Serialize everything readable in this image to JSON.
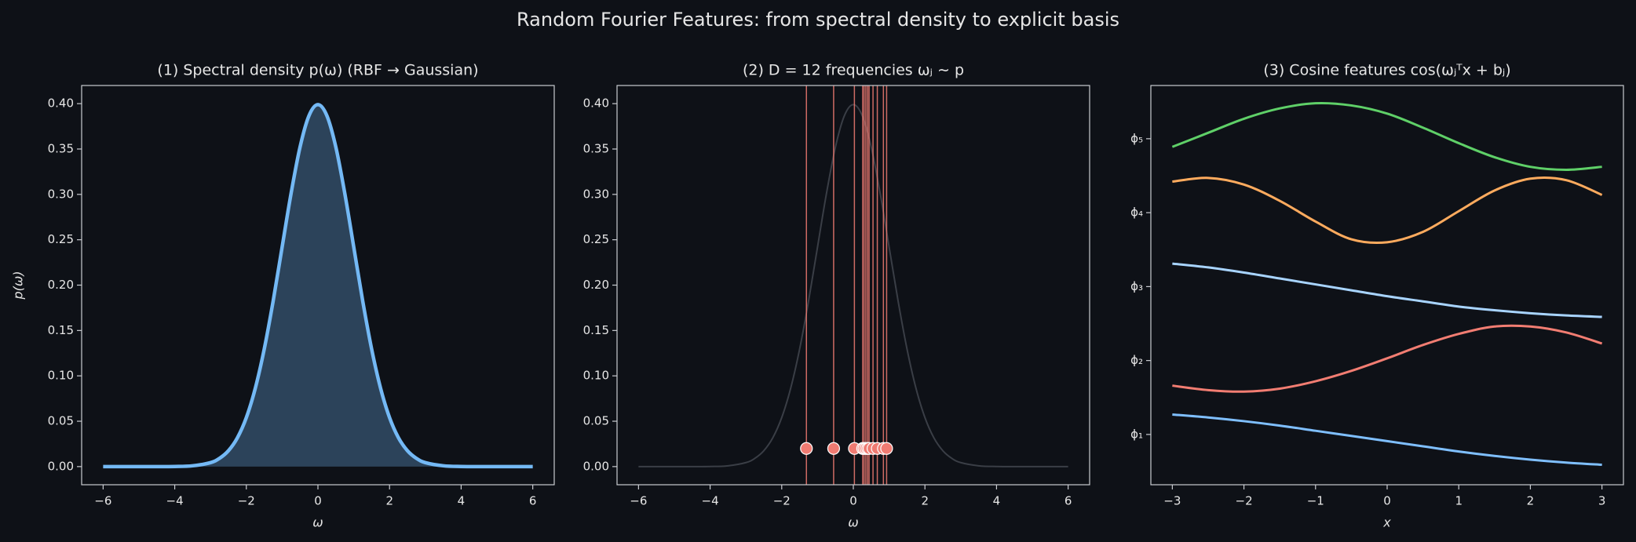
{
  "title": "Random Fourier Features: from spectral density to explicit basis",
  "chart_data": [
    {
      "type": "area",
      "title": "(1) Spectral density p(ω) (RBF → Gaussian)",
      "xlabel": "ω",
      "ylabel": "p(ω)",
      "x": [
        -6,
        -5,
        -4,
        -3.5,
        -3,
        -2.75,
        -2.5,
        -2.25,
        -2,
        -1.75,
        -1.5,
        -1.25,
        -1,
        -0.75,
        -0.5,
        -0.25,
        0,
        0.25,
        0.5,
        0.75,
        1,
        1.25,
        1.5,
        1.75,
        2,
        2.25,
        2.5,
        2.75,
        3,
        3.5,
        4,
        5,
        6
      ],
      "series": [
        {
          "color": "#74b9f5",
          "values": [
            0,
            0,
            0.0001,
            0.0009,
            0.0044,
            0.0091,
            0.0175,
            0.0317,
            0.054,
            0.0863,
            0.1295,
            0.1826,
            0.242,
            0.3011,
            0.3521,
            0.3867,
            0.3989,
            0.3867,
            0.3521,
            0.3011,
            0.242,
            0.1826,
            0.1295,
            0.0863,
            0.054,
            0.0317,
            0.0175,
            0.0091,
            0.0044,
            0.0009,
            0.0001,
            0,
            0
          ]
        }
      ],
      "xlim": [
        -6.6,
        6.6
      ],
      "ylim": [
        -0.02,
        0.42
      ],
      "xticks": [
        {
          "value": -6,
          "label": "−6"
        },
        {
          "value": -4,
          "label": "−4"
        },
        {
          "value": -2,
          "label": "−2"
        },
        0,
        2,
        4,
        6
      ],
      "yticks": [
        {
          "value": 0,
          "label": "0.00"
        },
        {
          "value": 0.05,
          "label": "0.05"
        },
        {
          "value": 0.1,
          "label": "0.10"
        },
        {
          "value": 0.15,
          "label": "0.15"
        },
        {
          "value": 0.2,
          "label": "0.20"
        },
        {
          "value": 0.25,
          "label": "0.25"
        },
        {
          "value": 0.3,
          "label": "0.30"
        },
        {
          "value": 0.35,
          "label": "0.35"
        },
        {
          "value": 0.4,
          "label": "0.40"
        }
      ]
    },
    {
      "type": "rug",
      "title": "(2) D = 12 frequencies ωⱼ ∼ p",
      "xlabel": "ω",
      "x": [
        -6,
        -5,
        -4,
        -3.5,
        -3,
        -2.75,
        -2.5,
        -2.25,
        -2,
        -1.75,
        -1.5,
        -1.25,
        -1,
        -0.75,
        -0.5,
        -0.25,
        0,
        0.25,
        0.5,
        0.75,
        1,
        1.25,
        1.5,
        1.75,
        2,
        2.25,
        2.5,
        2.75,
        3,
        3.5,
        4,
        5,
        6
      ],
      "series": [
        {
          "color": "#3a3e46",
          "values": [
            0,
            0,
            0.0001,
            0.0009,
            0.0044,
            0.0091,
            0.0175,
            0.0317,
            0.054,
            0.0863,
            0.1295,
            0.1826,
            0.242,
            0.3011,
            0.3521,
            0.3867,
            0.3989,
            0.3867,
            0.3521,
            0.3011,
            0.242,
            0.1826,
            0.1295,
            0.0863,
            0.054,
            0.0317,
            0.0175,
            0.0091,
            0.0044,
            0.0009,
            0.0001,
            0,
            0
          ]
        }
      ],
      "samples": {
        "color": "#f07b72",
        "x": [
          -1.31,
          -0.55,
          0.03,
          0.26,
          0.3,
          0.35,
          0.4,
          0.44,
          0.55,
          0.67,
          0.84,
          0.93
        ],
        "values": [
          0.02,
          0.02,
          0.02,
          0.02,
          0.02,
          0.02,
          0.02,
          0.02,
          0.02,
          0.02,
          0.02,
          0.02
        ]
      },
      "xlim": [
        -6.6,
        6.6
      ],
      "ylim": [
        -0.02,
        0.42
      ],
      "xticks": [
        {
          "value": -6,
          "label": "−6"
        },
        {
          "value": -4,
          "label": "−4"
        },
        {
          "value": -2,
          "label": "−2"
        },
        0,
        2,
        4,
        6
      ],
      "yticks": [
        {
          "value": 0,
          "label": "0.00"
        },
        {
          "value": 0.05,
          "label": "0.05"
        },
        {
          "value": 0.1,
          "label": "0.10"
        },
        {
          "value": 0.15,
          "label": "0.15"
        },
        {
          "value": 0.2,
          "label": "0.20"
        },
        {
          "value": 0.25,
          "label": "0.25"
        },
        {
          "value": 0.3,
          "label": "0.30"
        },
        {
          "value": 0.35,
          "label": "0.35"
        },
        {
          "value": 0.4,
          "label": "0.40"
        }
      ]
    },
    {
      "type": "line",
      "title": "(3) Cosine features cos(ωⱼᵀx + bⱼ)",
      "xlabel": "x",
      "x": [
        -3,
        -2.5,
        -2,
        -1.5,
        -1,
        -0.5,
        0,
        0.5,
        1,
        1.5,
        2,
        2.5,
        3
      ],
      "series": [
        {
          "color": "#7fbfff",
          "values": [
            1.27,
            1.23,
            1.18,
            1.12,
            1.05,
            0.98,
            0.91,
            0.84,
            0.77,
            0.71,
            0.66,
            0.62,
            0.59
          ]
        },
        {
          "color": "#f27d72",
          "values": [
            1.66,
            1.6,
            1.58,
            1.62,
            1.72,
            1.86,
            2.03,
            2.21,
            2.36,
            2.46,
            2.46,
            2.38,
            2.23
          ]
        },
        {
          "color": "#a8d4ff",
          "values": [
            3.31,
            3.26,
            3.19,
            3.11,
            3.03,
            2.95,
            2.87,
            2.8,
            2.73,
            2.68,
            2.64,
            2.61,
            2.59
          ]
        },
        {
          "color": "#ffab5e",
          "values": [
            4.42,
            4.47,
            4.38,
            4.16,
            3.88,
            3.64,
            3.6,
            3.74,
            4.02,
            4.3,
            4.46,
            4.44,
            4.24
          ]
        },
        {
          "color": "#5fd068",
          "values": [
            4.89,
            5.08,
            5.27,
            5.41,
            5.48,
            5.45,
            5.34,
            5.15,
            4.94,
            4.75,
            4.62,
            4.58,
            4.62
          ]
        }
      ],
      "xlim": [
        -3.3,
        3.3
      ],
      "ylim": [
        0.32,
        5.72
      ],
      "xticks": [
        {
          "value": -3,
          "label": "−3"
        },
        {
          "value": -2,
          "label": "−2"
        },
        {
          "value": -1,
          "label": "−1"
        },
        0,
        1,
        2,
        3
      ],
      "yticks": [
        {
          "value": 1,
          "label": "ϕ₁"
        },
        {
          "value": 2,
          "label": "ϕ₂"
        },
        {
          "value": 3,
          "label": "ϕ₃"
        },
        {
          "value": 4,
          "label": "ϕ₄"
        },
        {
          "value": 5,
          "label": "ϕ₅"
        }
      ]
    }
  ]
}
